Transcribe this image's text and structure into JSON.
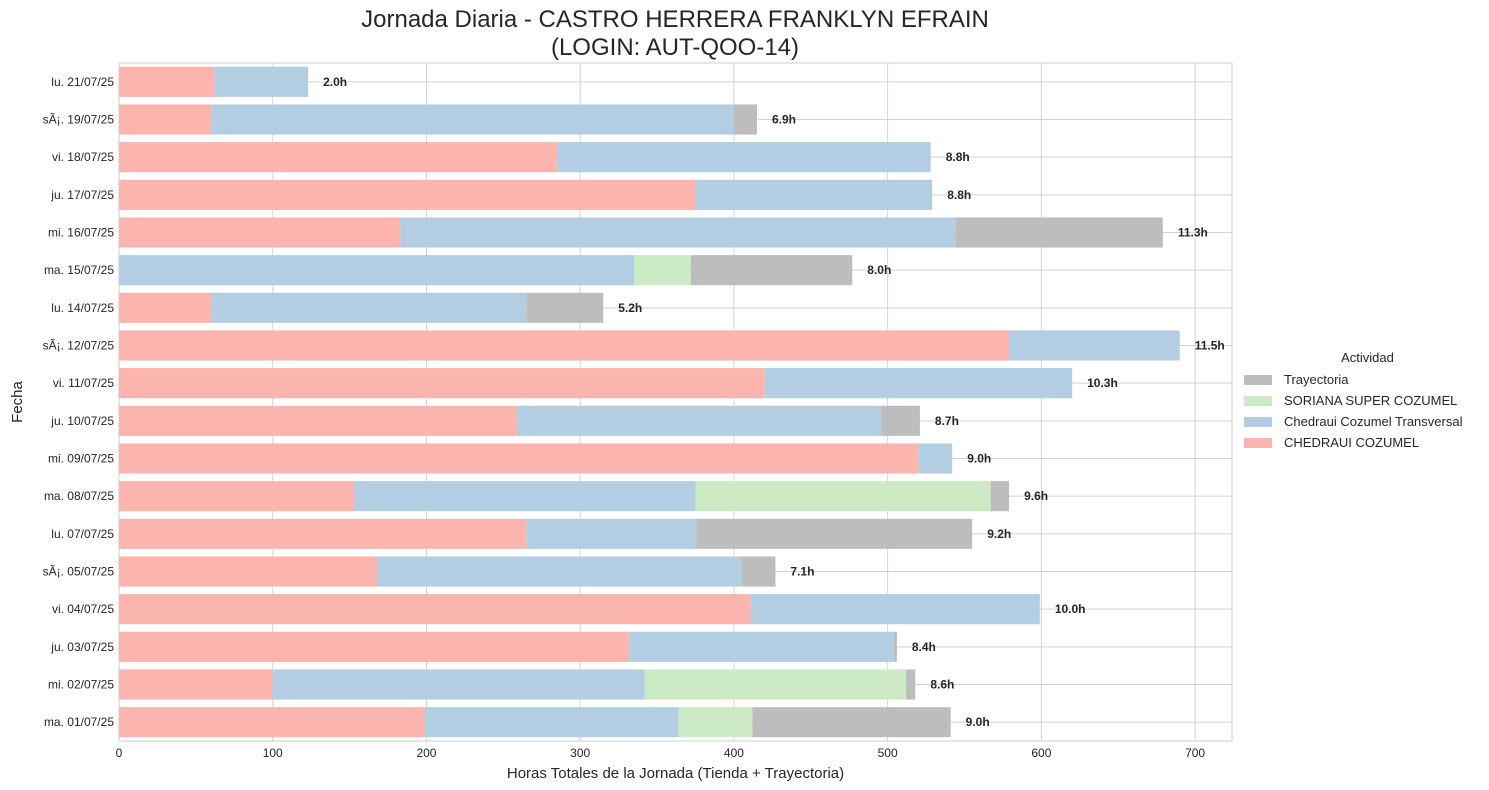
{
  "chart_data": {
    "type": "bar",
    "orientation": "horizontal",
    "stacked": true,
    "title": "Jornada Diaria - CASTRO HERRERA FRANKLYN EFRAIN",
    "subtitle": "(LOGIN: AUT-QOO-14)",
    "xlabel": "Horas Totales de la Jornada (Tienda + Trayectoria)",
    "ylabel": "Fecha",
    "xlim": [
      0,
      724
    ],
    "xticks": [
      0,
      100,
      200,
      300,
      400,
      500,
      600,
      700
    ],
    "grid": true,
    "legend_title": "Actividad",
    "legend_position": "right",
    "categories": [
      "lu. 21/07/25",
      "sÃ¡. 19/07/25",
      "vi. 18/07/25",
      "ju. 17/07/25",
      "mi. 16/07/25",
      "ma. 15/07/25",
      "lu. 14/07/25",
      "sÃ¡. 12/07/25",
      "vi. 11/07/25",
      "ju. 10/07/25",
      "mi. 09/07/25",
      "ma. 08/07/25",
      "lu. 07/07/25",
      "sÃ¡. 05/07/25",
      "vi. 04/07/25",
      "ju. 03/07/25",
      "mi. 02/07/25",
      "ma. 01/07/25"
    ],
    "series": [
      {
        "name": "CHEDRAUI COZUMEL",
        "color": "#fbb4ae",
        "values": [
          62,
          60,
          285,
          375,
          183,
          0,
          60,
          579,
          420,
          259,
          520,
          153,
          265,
          168,
          411,
          332,
          100,
          199
        ]
      },
      {
        "name": "Chedraui Cozumel Transversal",
        "color": "#b3cde3",
        "values": [
          61,
          340,
          243,
          154,
          361,
          335,
          205,
          111,
          200,
          237,
          22,
          222,
          111,
          237,
          188,
          172,
          242,
          165
        ]
      },
      {
        "name": "SORIANA SUPER COZUMEL",
        "color": "#ccebc5",
        "values": [
          0,
          0,
          0,
          0,
          0,
          37,
          0,
          0,
          0,
          0,
          0,
          192,
          0,
          0,
          0,
          0,
          170,
          48
        ]
      },
      {
        "name": "Trayectoria",
        "color": "#bdbdbd",
        "values": [
          0,
          15,
          0,
          0,
          135,
          105,
          50,
          0,
          0,
          25,
          0,
          12,
          179,
          22,
          0,
          2,
          6,
          129
        ]
      }
    ],
    "total_labels": [
      "2.0h",
      "6.9h",
      "8.8h",
      "8.8h",
      "11.3h",
      "8.0h",
      "5.2h",
      "11.5h",
      "10.3h",
      "8.7h",
      "9.0h",
      "9.6h",
      "9.2h",
      "7.1h",
      "10.0h",
      "8.4h",
      "8.6h",
      "9.0h"
    ],
    "legend_order": [
      "Trayectoria",
      "SORIANA SUPER COZUMEL",
      "Chedraui Cozumel Transversal",
      "CHEDRAUI COZUMEL"
    ]
  }
}
